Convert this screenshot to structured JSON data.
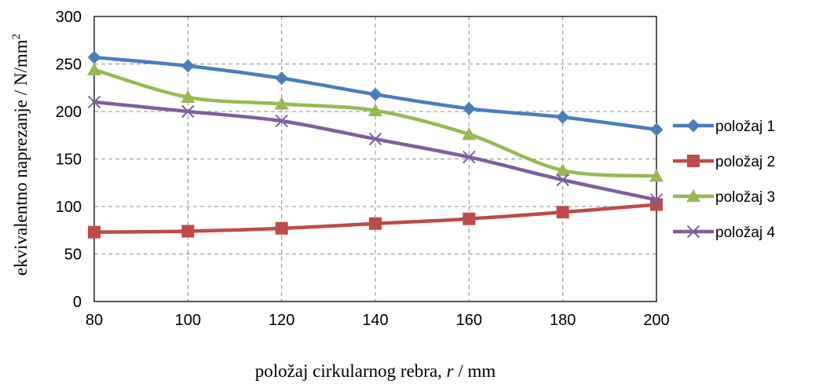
{
  "chart_data": {
    "type": "line",
    "x": [
      80,
      100,
      120,
      140,
      160,
      180,
      200
    ],
    "xlabel_parts": [
      "položaj cirkularnog rebra, ",
      "r",
      " / mm"
    ],
    "ylabel_main": "ekvivalentno naprezanje  /  N/mm",
    "ylabel_sup": "2",
    "xlim": [
      80,
      200
    ],
    "ylim": [
      0,
      300
    ],
    "yticks": [
      0,
      50,
      100,
      150,
      200,
      250,
      300
    ],
    "xticks": [
      80,
      100,
      120,
      140,
      160,
      180,
      200
    ],
    "grid": true,
    "grid_style": "dashed",
    "legend_position": "right",
    "series": [
      {
        "name": "položaj 1",
        "color": "#4a7ebb",
        "marker": "diamond",
        "values": [
          257,
          248,
          235,
          218,
          203,
          194,
          181
        ]
      },
      {
        "name": "položaj 2",
        "color": "#be4b48",
        "marker": "square",
        "values": [
          73,
          74,
          77,
          82,
          87,
          94,
          102
        ]
      },
      {
        "name": "položaj 3",
        "color": "#98b954",
        "marker": "triangle",
        "values": [
          244,
          215,
          208,
          201,
          176,
          138,
          132
        ]
      },
      {
        "name": "položaj 4",
        "color": "#7d60a0",
        "marker": "x",
        "values": [
          210,
          200,
          190,
          171,
          152,
          128,
          107
        ]
      }
    ]
  }
}
